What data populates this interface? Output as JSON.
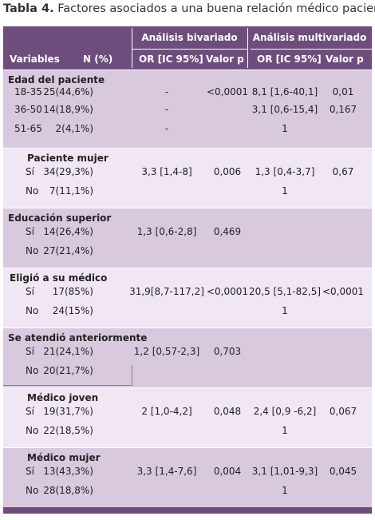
{
  "title": {
    "bold": "Tabla 4.",
    "rest": " Factores asociados a una buena relación médico paciente"
  },
  "header": {
    "analisis_bivariado": "Análisis bivariado",
    "analisis_multivariado": "Análisis multivariado",
    "variables": "Variables",
    "n": "N (%)",
    "or1": "OR [IC 95%]",
    "p1": "Valor p",
    "or2": "OR [IC 95%]",
    "p2": "Valor p"
  },
  "groups": [
    {
      "label": "Edad del paciente",
      "rows": [
        {
          "cat": "18-35",
          "n": "25(44,6%)",
          "or1": "-",
          "p1": "<0,0001",
          "or2": "8,1 [1,6-40,1]",
          "p2": "0,01"
        },
        {
          "cat": "36-50",
          "n": "14(18,9%)",
          "or1": "-",
          "p1": "",
          "or2": "3,1 [0,6-15,4]",
          "p2": "0,167"
        },
        {
          "cat": "51-65",
          "n": "2(4,1%)",
          "or1": "-",
          "p1": "",
          "or2": "1",
          "p2": ""
        }
      ]
    },
    {
      "label": "Paciente mujer",
      "rows": [
        {
          "cat": "Sí",
          "n": "34(29,3%)",
          "or1": "3,3 [1,4-8]",
          "p1": "0,006",
          "or2": "1,3 [0,4-3,7]",
          "p2": "0,67"
        },
        {
          "cat": "No",
          "n": "7(11,1%)",
          "or1": "",
          "p1": "",
          "or2": "1",
          "p2": ""
        }
      ]
    },
    {
      "label": "Educación superior",
      "rows": [
        {
          "cat": "Sí",
          "n": "14(26,4%)",
          "or1": "1,3 [0,6-2,8]",
          "p1": "0,469",
          "or2": "",
          "p2": ""
        },
        {
          "cat": "No",
          "n": "27(21,4%)",
          "or1": "",
          "p1": "",
          "or2": "",
          "p2": ""
        }
      ]
    },
    {
      "label": "Eligió a su médico",
      "rows": [
        {
          "cat": "Sí",
          "n": "17(85%)",
          "or1": "31,9[8,7-117,2]",
          "p1": "<0,0001",
          "or2": "20,5 [5,1-82,5]",
          "p2": "<0,0001"
        },
        {
          "cat": "No",
          "n": "24(15%)",
          "or1": "",
          "p1": "",
          "or2": "1",
          "p2": ""
        }
      ]
    },
    {
      "label": "Se atendió anteriormente",
      "rows": [
        {
          "cat": "Sí",
          "n": "21(24,1%)",
          "or1": "1,2 [0,57-2,3]",
          "p1": "0,703",
          "or2": "",
          "p2": ""
        },
        {
          "cat": "No",
          "n": "20(21,7%)",
          "or1": "",
          "p1": "",
          "or2": "",
          "p2": ""
        }
      ]
    },
    {
      "label": "Médico joven",
      "rows": [
        {
          "cat": "Sí",
          "n": "19(31,7%)",
          "or1": "2 [1,0-4,2]",
          "p1": "0,048",
          "or2": "2,4 [0,9 -6,2]",
          "p2": "0,067"
        },
        {
          "cat": "No",
          "n": "22(18,5%)",
          "or1": "",
          "p1": "",
          "or2": "1",
          "p2": ""
        }
      ]
    },
    {
      "label": "Médico mujer",
      "rows": [
        {
          "cat": "Sí",
          "n": "13(43,3%)",
          "or1": "3,3 [1,4-7,6]",
          "p1": "0,004",
          "or2": "3,1 [1,01-9,3]",
          "p2": "0,045"
        },
        {
          "cat": "No",
          "n": "28(18,8%)",
          "or1": "",
          "p1": "",
          "or2": "1",
          "p2": ""
        }
      ]
    }
  ]
}
